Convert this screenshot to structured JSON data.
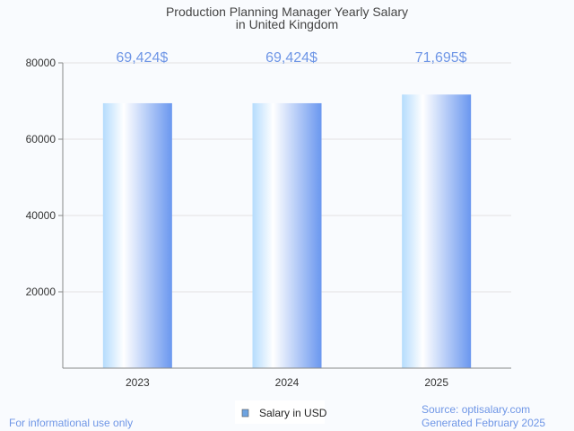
{
  "chart_data": {
    "type": "bar",
    "title": [
      "Production Planning Manager Yearly Salary",
      "in United Kingdom"
    ],
    "categories": [
      "2023",
      "2024",
      "2025"
    ],
    "values": [
      69424,
      69424,
      71695
    ],
    "data_labels": [
      "69,424$",
      "69,424$",
      "71,695$"
    ],
    "xlabel": "",
    "ylabel": "",
    "ylim": [
      0,
      80000
    ],
    "yticks": [
      20000,
      40000,
      60000,
      80000
    ],
    "ytick_labels": [
      "20000",
      "40000",
      "60000",
      "80000"
    ],
    "grid": true,
    "legend": {
      "position": "bottom-center",
      "entries": [
        "Salary in USD"
      ]
    },
    "annotations": {
      "left_footer": "For informational use only",
      "source": "Source: optisalary.com",
      "generated": "Generated February 2025"
    }
  },
  "colors": {
    "label": "#6f96e6",
    "bar_dark": "#6a97ef",
    "bar_light": "#b5dcfd",
    "legend_swatch": "#6ea3e0"
  }
}
